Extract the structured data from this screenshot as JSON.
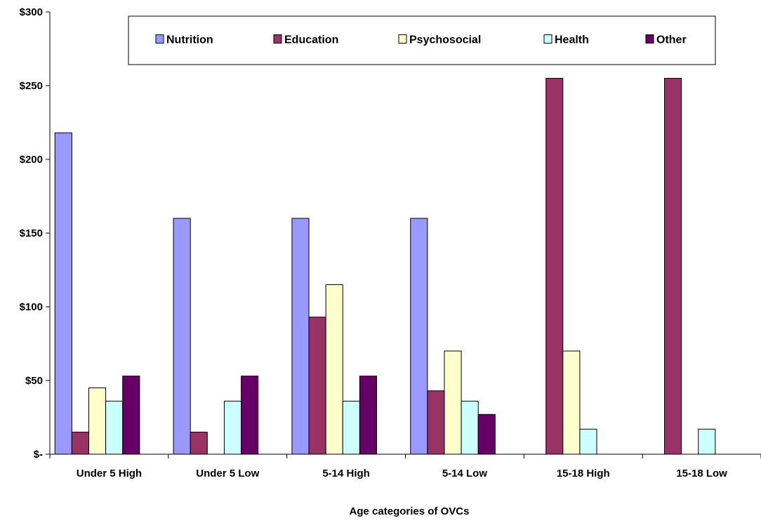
{
  "chart_data": {
    "type": "bar",
    "title": "",
    "xlabel": "Age categories of OVCs",
    "ylabel": "",
    "ylim": [
      0,
      300
    ],
    "yticks": [
      0,
      50,
      100,
      150,
      200,
      250,
      300
    ],
    "ytick_labels": [
      "$-",
      "$50",
      "$100",
      "$150",
      "$200",
      "$250",
      "$300"
    ],
    "categories": [
      "Under 5 High",
      "Under 5 Low",
      "5-14 High",
      "5-14 Low",
      "15-18 High",
      "15-18 Low"
    ],
    "series": [
      {
        "name": "Nutrition",
        "color": "#9999ff",
        "values": [
          218,
          160,
          160,
          160,
          0,
          0
        ]
      },
      {
        "name": "Education",
        "color": "#993366",
        "values": [
          15,
          15,
          93,
          43,
          255,
          255
        ]
      },
      {
        "name": "Psychosocial",
        "color": "#ffffcc",
        "values": [
          45,
          0,
          115,
          70,
          70,
          0
        ]
      },
      {
        "name": "Health",
        "color": "#ccffff",
        "values": [
          36,
          36,
          36,
          36,
          17,
          17
        ]
      },
      {
        "name": "Other",
        "color": "#660066",
        "values": [
          53,
          53,
          53,
          27,
          0,
          0
        ]
      }
    ],
    "legend_position": "top",
    "grid": false
  }
}
